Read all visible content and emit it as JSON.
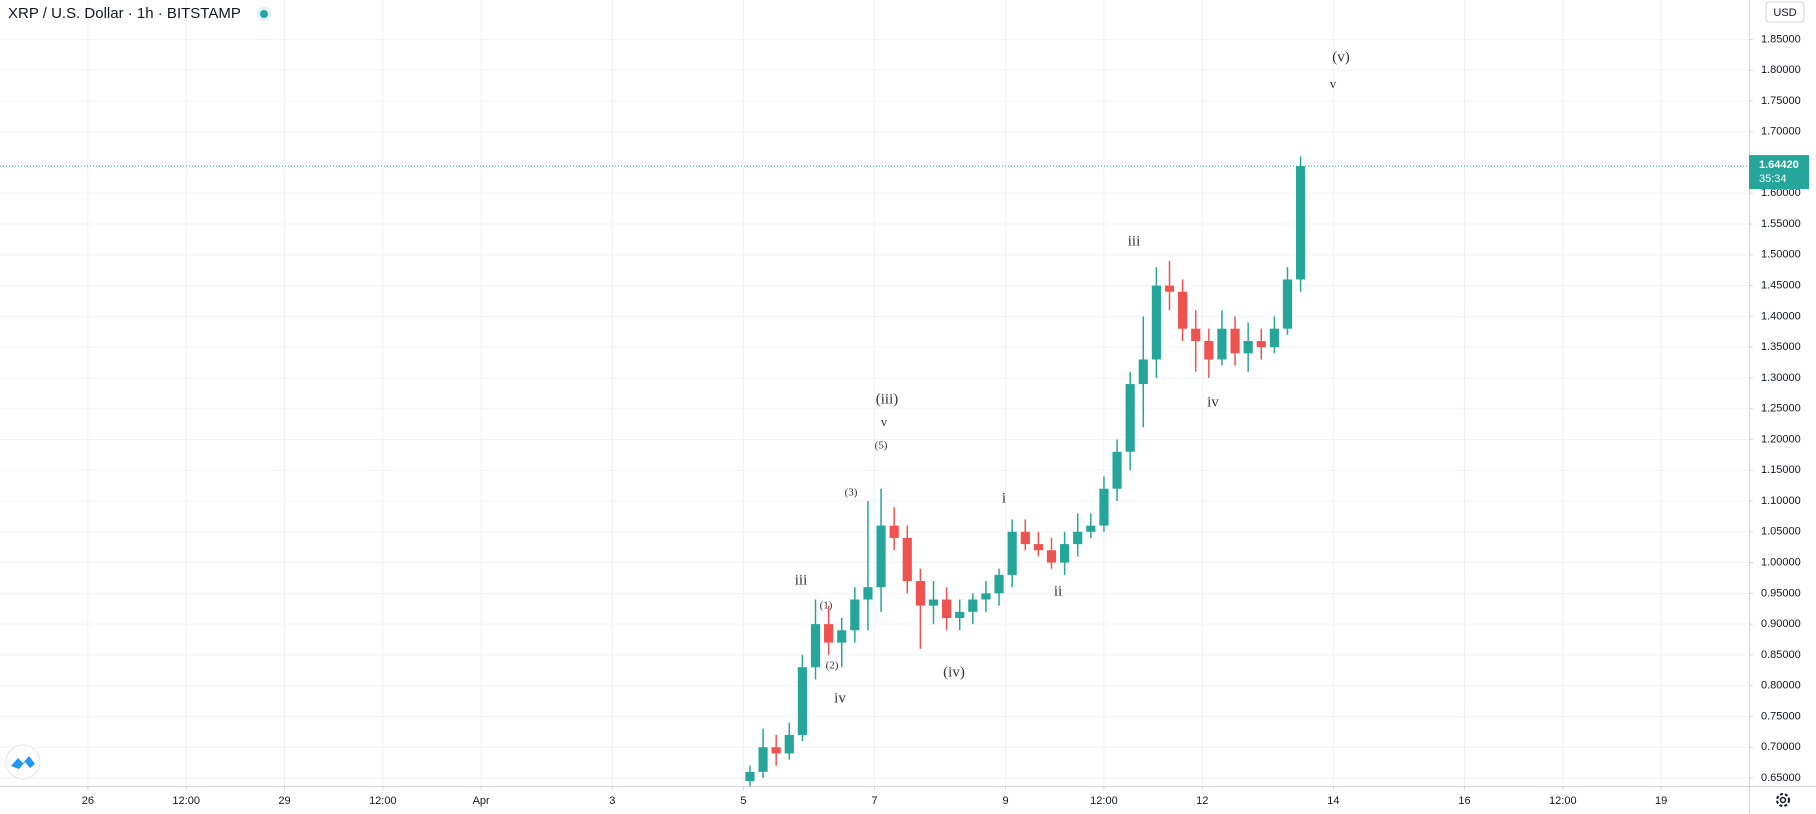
{
  "chart_data": {
    "type": "candlestick",
    "title": "XRP / U.S. Dollar · 1h · BITSTAMP",
    "currency": "USD",
    "colors": {
      "up": "#26a69a",
      "down": "#ef5350"
    },
    "grid": true,
    "xlim": [
      24.66,
      51.34
    ],
    "xticks": [
      {
        "value": 26,
        "label": "26"
      },
      {
        "value": 27.5,
        "label": "12:00"
      },
      {
        "value": 29,
        "label": "29"
      },
      {
        "value": 30.5,
        "label": "12:00"
      },
      {
        "value": 32,
        "label": "Apr"
      },
      {
        "value": 34,
        "label": "3"
      },
      {
        "value": 36,
        "label": "5"
      },
      {
        "value": 38,
        "label": "7"
      },
      {
        "value": 40,
        "label": "9"
      },
      {
        "value": 41.5,
        "label": "12:00"
      },
      {
        "value": 43,
        "label": "12"
      },
      {
        "value": 45,
        "label": "14"
      },
      {
        "value": 47,
        "label": "16"
      },
      {
        "value": 48.5,
        "label": "12:00"
      },
      {
        "value": 50,
        "label": "19"
      }
    ],
    "ylim": [
      0.637,
      1.914
    ],
    "yticks": [
      {
        "value": 0.65,
        "label": "0.65000"
      },
      {
        "value": 0.7,
        "label": "0.70000"
      },
      {
        "value": 0.75,
        "label": "0.75000"
      },
      {
        "value": 0.8,
        "label": "0.80000"
      },
      {
        "value": 0.85,
        "label": "0.85000"
      },
      {
        "value": 0.9,
        "label": "0.90000"
      },
      {
        "value": 0.95,
        "label": "0.95000"
      },
      {
        "value": 1.0,
        "label": "1.00000"
      },
      {
        "value": 1.05,
        "label": "1.05000"
      },
      {
        "value": 1.1,
        "label": "1.10000"
      },
      {
        "value": 1.15,
        "label": "1.15000"
      },
      {
        "value": 1.2,
        "label": "1.20000"
      },
      {
        "value": 1.25,
        "label": "1.25000"
      },
      {
        "value": 1.3,
        "label": "1.30000"
      },
      {
        "value": 1.35,
        "label": "1.35000"
      },
      {
        "value": 1.4,
        "label": "1.40000"
      },
      {
        "value": 1.45,
        "label": "1.45000"
      },
      {
        "value": 1.5,
        "label": "1.50000"
      },
      {
        "value": 1.55,
        "label": "1.55000"
      },
      {
        "value": 1.6,
        "label": "1.60000"
      },
      {
        "value": 1.65,
        "label": "1.65000"
      },
      {
        "value": 1.7,
        "label": "1.70000"
      },
      {
        "value": 1.75,
        "label": "1.75000"
      },
      {
        "value": 1.8,
        "label": "1.80000"
      },
      {
        "value": 1.85,
        "label": "1.85000"
      }
    ],
    "x": [
      36.1,
      36.3,
      36.5,
      36.7,
      36.9,
      37.1,
      37.3,
      37.5,
      37.7,
      37.9,
      38.1,
      38.3,
      38.5,
      38.7,
      38.9,
      39.1,
      39.3,
      39.5,
      39.7,
      39.9,
      40.1,
      40.3,
      40.5,
      40.7,
      40.9,
      41.1,
      41.3,
      41.5,
      41.7,
      41.9,
      42.1,
      42.3,
      42.5,
      42.7,
      42.9,
      43.1,
      43.3,
      43.5,
      43.7,
      43.9,
      44.1,
      44.3,
      44.5
    ],
    "open": [
      0.645,
      0.66,
      0.7,
      0.69,
      0.72,
      0.83,
      0.9,
      0.87,
      0.89,
      0.94,
      0.96,
      1.06,
      1.04,
      0.97,
      0.93,
      0.94,
      0.91,
      0.92,
      0.94,
      0.95,
      0.98,
      1.05,
      1.03,
      1.02,
      1.0,
      1.03,
      1.05,
      1.06,
      1.12,
      1.18,
      1.29,
      1.33,
      1.45,
      1.44,
      1.38,
      1.36,
      1.33,
      1.38,
      1.34,
      1.36,
      1.35,
      1.38,
      1.46
    ],
    "high": [
      0.67,
      0.73,
      0.72,
      0.74,
      0.85,
      0.94,
      0.93,
      0.91,
      0.96,
      1.1,
      1.12,
      1.09,
      1.06,
      0.99,
      0.97,
      0.96,
      0.94,
      0.95,
      0.97,
      0.99,
      1.07,
      1.07,
      1.05,
      1.04,
      1.05,
      1.08,
      1.08,
      1.14,
      1.2,
      1.31,
      1.4,
      1.48,
      1.49,
      1.46,
      1.41,
      1.38,
      1.41,
      1.4,
      1.39,
      1.38,
      1.4,
      1.48,
      1.66
    ],
    "low": [
      0.635,
      0.65,
      0.67,
      0.68,
      0.71,
      0.81,
      0.85,
      0.83,
      0.87,
      0.89,
      0.92,
      1.02,
      0.95,
      0.86,
      0.9,
      0.89,
      0.89,
      0.9,
      0.92,
      0.93,
      0.96,
      1.02,
      1.01,
      0.99,
      0.98,
      1.01,
      1.04,
      1.05,
      1.1,
      1.15,
      1.22,
      1.3,
      1.41,
      1.36,
      1.31,
      1.3,
      1.32,
      1.32,
      1.31,
      1.33,
      1.34,
      1.37,
      1.44
    ],
    "close": [
      0.66,
      0.7,
      0.69,
      0.72,
      0.83,
      0.9,
      0.87,
      0.89,
      0.94,
      0.96,
      1.06,
      1.04,
      0.97,
      0.93,
      0.94,
      0.91,
      0.92,
      0.94,
      0.95,
      0.98,
      1.05,
      1.03,
      1.02,
      1.0,
      1.03,
      1.05,
      1.06,
      1.12,
      1.18,
      1.29,
      1.33,
      1.45,
      1.44,
      1.38,
      1.36,
      1.33,
      1.38,
      1.34,
      1.36,
      1.35,
      1.38,
      1.46,
      1.6442
    ],
    "last_price": {
      "value": 1.6442,
      "label": "1.64420"
    },
    "countdown": "35:34",
    "annotations": [
      "(v)",
      "v",
      "(iii)",
      "v",
      "(5)",
      "(3)",
      "iii",
      "(1)",
      "(2)",
      "iv",
      "(iv)",
      "i",
      "ii",
      "iii",
      "iv"
    ]
  }
}
